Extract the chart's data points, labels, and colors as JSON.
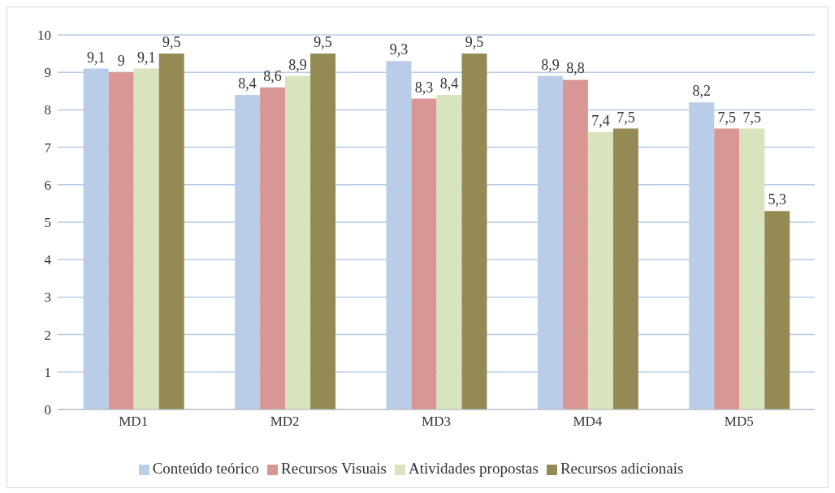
{
  "chart_data": {
    "type": "bar",
    "categories": [
      "MD1",
      "MD2",
      "MD3",
      "MD4",
      "MD5"
    ],
    "series": [
      {
        "name": "Conteúdo teórico",
        "color": "#b9cde9",
        "values": [
          9.1,
          8.4,
          9.3,
          8.9,
          8.2
        ],
        "value_labels": [
          "9,1",
          "8,4",
          "9,3",
          "8,9",
          "8,2"
        ]
      },
      {
        "name": "Recursos Visuais",
        "color": "#d99694",
        "values": [
          9,
          8.6,
          8.3,
          8.8,
          7.5
        ],
        "value_labels": [
          "9",
          "8,6",
          "8,3",
          "8,8",
          "7,5"
        ]
      },
      {
        "name": "Atividades propostas",
        "color": "#d7e4bd",
        "values": [
          9.1,
          8.9,
          8.4,
          7.4,
          7.5
        ],
        "value_labels": [
          "9,1",
          "8,9",
          "8,4",
          "7,4",
          "7,5"
        ]
      },
      {
        "name": "Recursos adicionais",
        "color": "#948a54",
        "values": [
          9.5,
          9.5,
          9.5,
          7.5,
          5.3
        ],
        "value_labels": [
          "9,5",
          "9,5",
          "9,5",
          "7,5",
          "5,3"
        ]
      }
    ],
    "ylim": [
      0,
      10
    ],
    "yticks": [
      0,
      1,
      2,
      3,
      4,
      5,
      6,
      7,
      8,
      9,
      10
    ],
    "grid": "y",
    "legend": "bottom"
  }
}
